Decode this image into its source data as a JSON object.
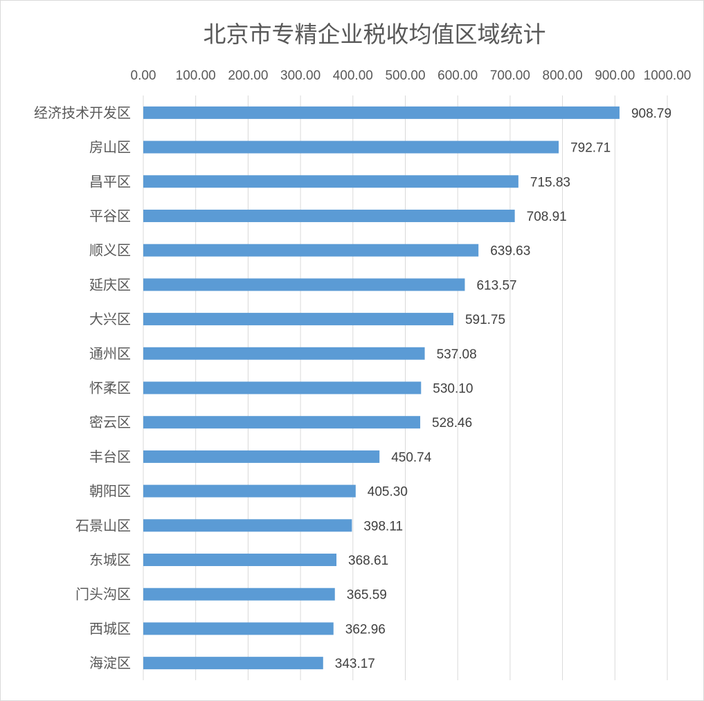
{
  "chart_data": {
    "type": "bar",
    "orientation": "horizontal",
    "title": "北京市专精企业税收均值区域统计",
    "xlabel": "",
    "ylabel": "",
    "xlim": [
      0,
      1000
    ],
    "x_ticks": [
      "0.00",
      "100.00",
      "200.00",
      "300.00",
      "400.00",
      "500.00",
      "600.00",
      "700.00",
      "800.00",
      "900.00",
      "1000.00"
    ],
    "x_axis_position": "top",
    "grid": true,
    "legend": "none",
    "bar_color": "#5B9BD5",
    "categories": [
      "经济技术开发区",
      "房山区",
      "昌平区",
      "平谷区",
      "顺义区",
      "延庆区",
      "大兴区",
      "通州区",
      "怀柔区",
      "密云区",
      "丰台区",
      "朝阳区",
      "石景山区",
      "东城区",
      "门头沟区",
      "西城区",
      "海淀区"
    ],
    "values": [
      908.79,
      792.71,
      715.83,
      708.91,
      639.63,
      613.57,
      591.75,
      537.08,
      530.1,
      528.46,
      450.74,
      405.3,
      398.11,
      368.61,
      365.59,
      362.96,
      343.17
    ],
    "value_labels": [
      "908.79",
      "792.71",
      "715.83",
      "708.91",
      "639.63",
      "613.57",
      "591.75",
      "537.08",
      "530.10",
      "528.46",
      "450.74",
      "405.30",
      "398.11",
      "368.61",
      "365.59",
      "362.96",
      "343.17"
    ]
  }
}
